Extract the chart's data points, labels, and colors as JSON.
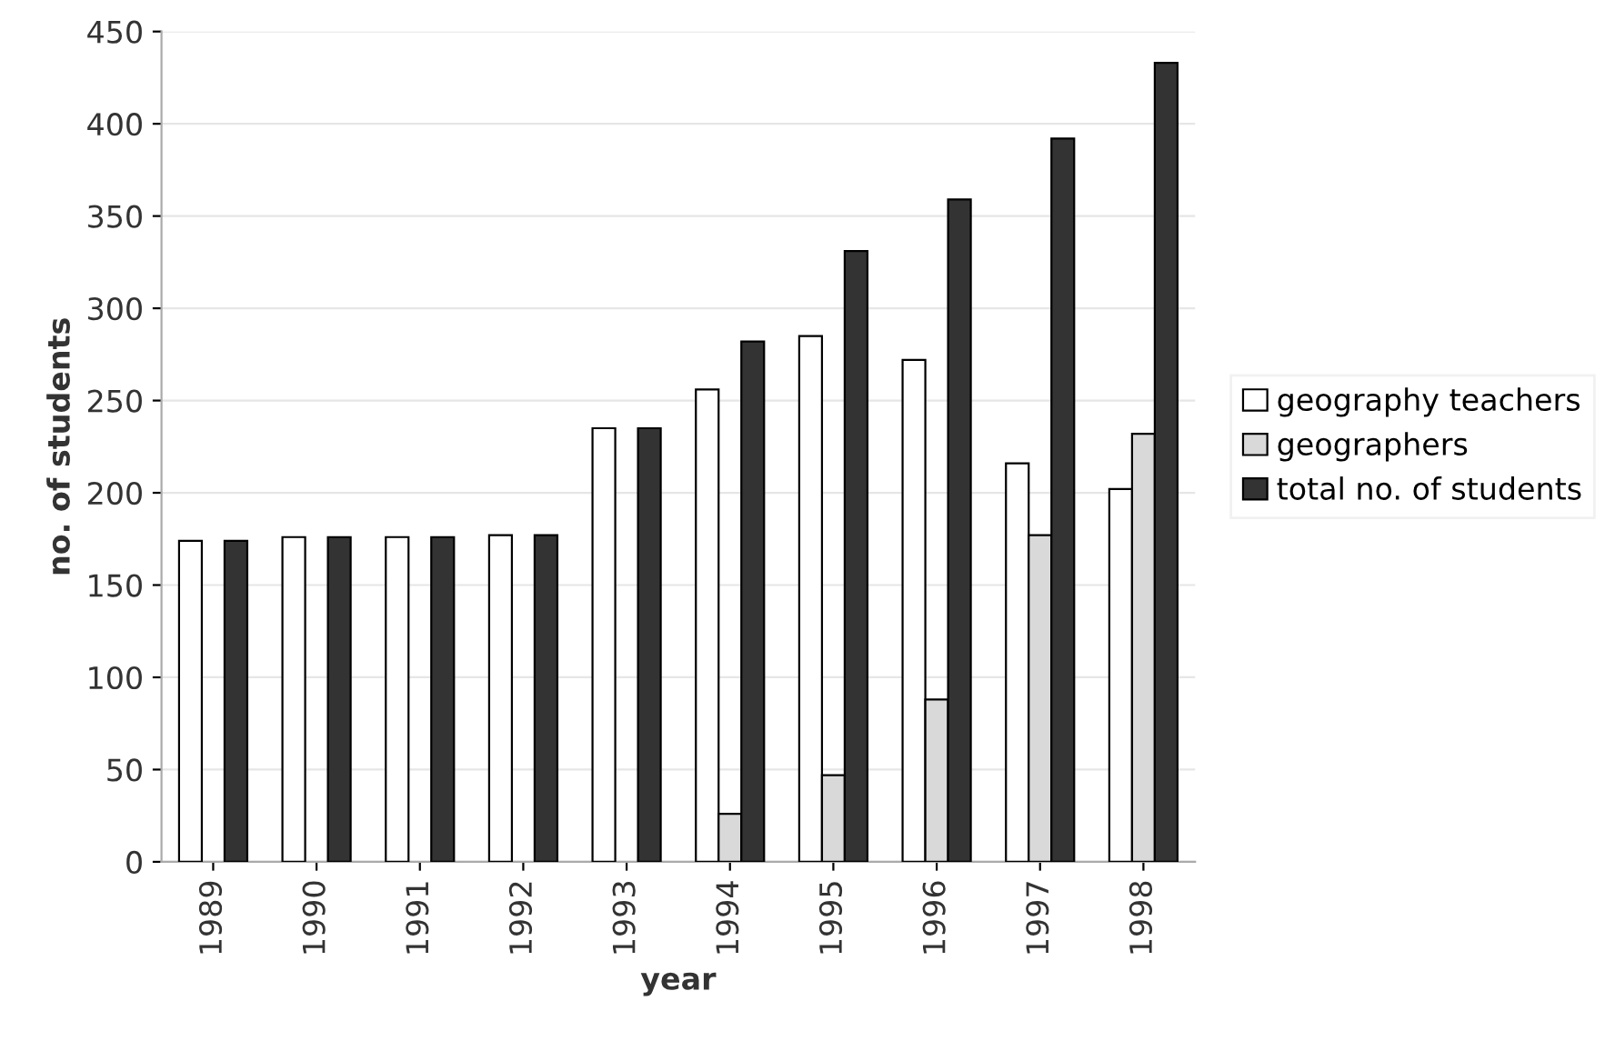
{
  "chart_data": {
    "type": "bar",
    "xlabel": "year",
    "ylabel": "no. of students",
    "categories": [
      "1989",
      "1990",
      "1991",
      "1992",
      "1993",
      "1994",
      "1995",
      "1996",
      "1997",
      "1998"
    ],
    "series": [
      {
        "name": "geography teachers",
        "color": "#ffffff",
        "values": [
          174,
          176,
          176,
          177,
          235,
          256,
          285,
          272,
          216,
          202
        ]
      },
      {
        "name": "geographers",
        "color": "#d9d9d9",
        "values": [
          null,
          null,
          null,
          null,
          null,
          26,
          47,
          88,
          177,
          232
        ]
      },
      {
        "name": "total no. of students",
        "color": "#333333",
        "values": [
          174,
          176,
          176,
          177,
          235,
          282,
          331,
          359,
          392,
          433
        ]
      }
    ],
    "ylim": [
      0,
      450
    ],
    "yticks": [
      0,
      50,
      100,
      150,
      200,
      250,
      300,
      350,
      400,
      450
    ],
    "grid": "y",
    "legend": "right"
  }
}
